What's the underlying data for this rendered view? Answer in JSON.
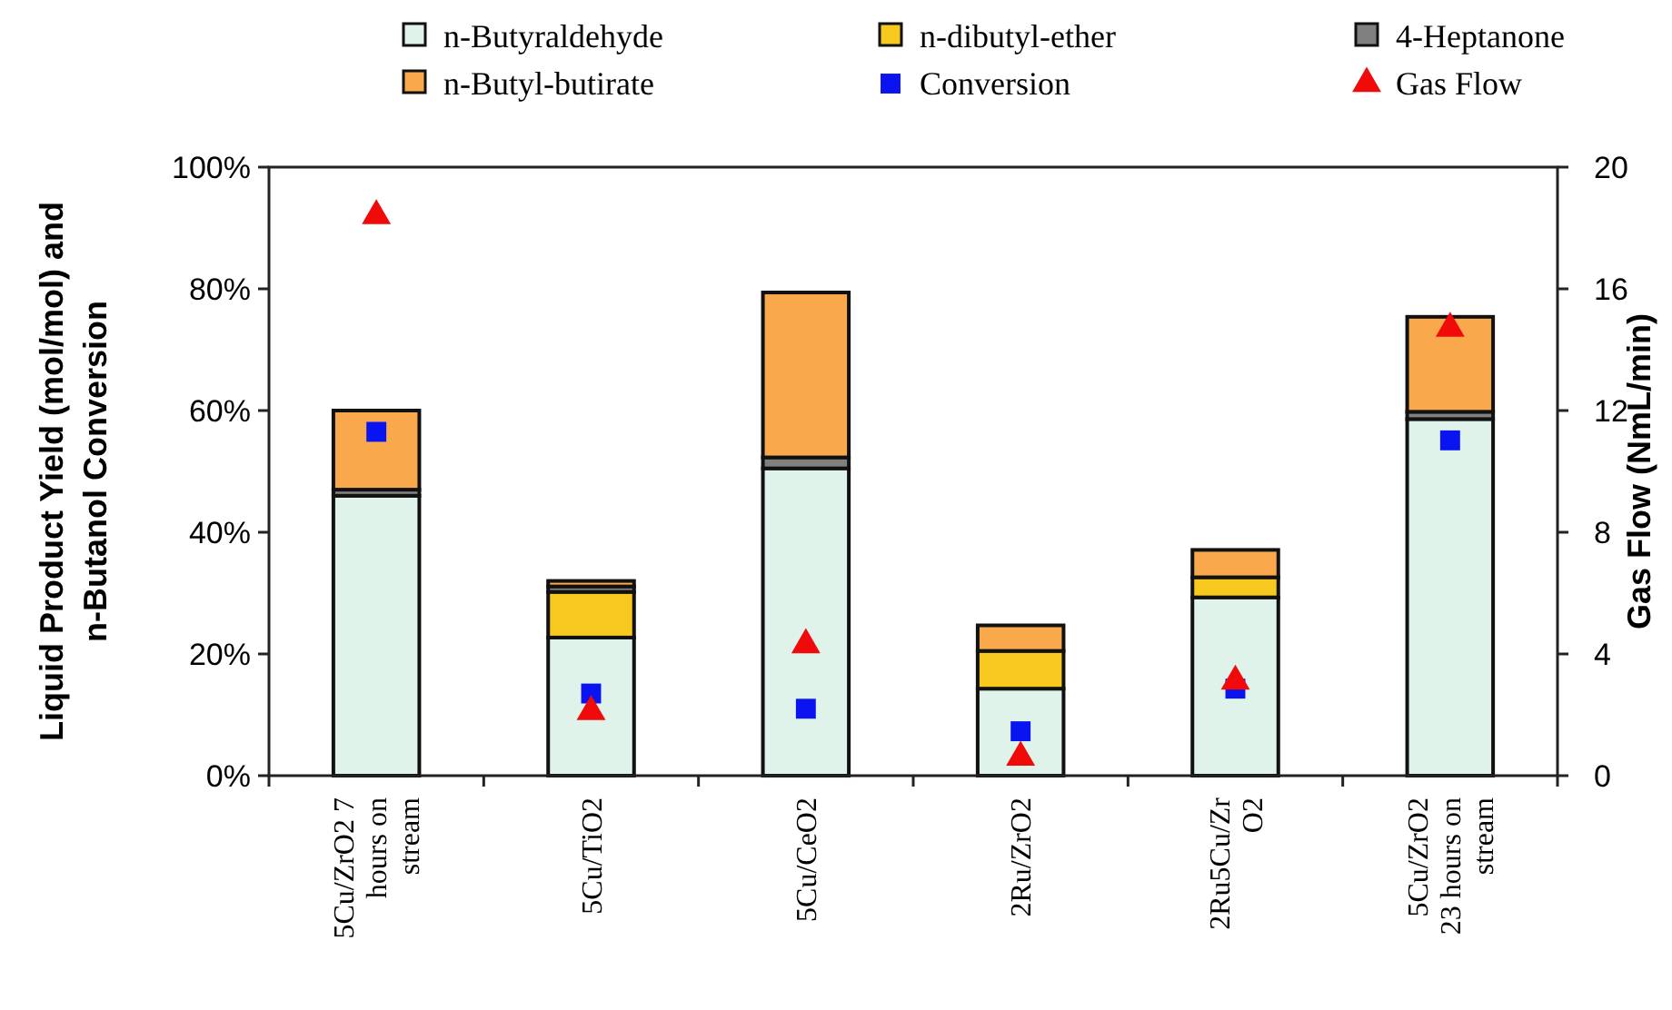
{
  "chart_data": {
    "type": "bar",
    "stacked": true,
    "ylabel": "Liquid Product Yield (mol/mol) and\nn-Butanol Conversion",
    "y2label": "Gas Flow (NmL/min)",
    "categories": [
      "5Cu/ZrO2 7\nhours on\nstream",
      "5Cu/TiO2",
      "5Cu/CeO2",
      "2Ru/ZrO2",
      "2Ru5Cu/Zr\nO2",
      "5Cu/ZrO2\n23 hours on\nstream"
    ],
    "series": [
      {
        "name": "n-Butyraldehyde",
        "color": "#dff3ea",
        "values": [
          46,
          22.7,
          50.5,
          14.3,
          29.3,
          58.6
        ]
      },
      {
        "name": "n-dibutyl-ether",
        "color": "#f7c81e",
        "values": [
          0,
          7.5,
          0,
          6.2,
          3.3,
          0
        ]
      },
      {
        "name": "4-Heptanone",
        "color": "#808080",
        "values": [
          1,
          0.9,
          1.8,
          0,
          0,
          1.2
        ]
      },
      {
        "name": "n-Butyl-butirate",
        "color": "#f9a94b",
        "values": [
          13,
          0.9,
          27.1,
          4.2,
          4.5,
          15.6
        ]
      },
      {
        "name": "Conversion",
        "type": "scatter",
        "marker": "square",
        "color": "#0a14f0",
        "values": [
          56.5,
          13.5,
          11,
          7.3,
          14.3,
          55.1
        ]
      },
      {
        "name": "Gas Flow",
        "type": "scatter",
        "marker": "triangle",
        "axis": "y2",
        "color": "#f00a0a",
        "values": [
          18.4,
          2.1,
          4.3,
          0.6,
          3.1,
          14.7
        ]
      }
    ],
    "ylim": [
      0,
      100
    ],
    "yticks": [
      {
        "value": 0,
        "label": "0%"
      },
      {
        "value": 20,
        "label": "20%"
      },
      {
        "value": 40,
        "label": "40%"
      },
      {
        "value": 60,
        "label": "60%"
      },
      {
        "value": 80,
        "label": "80%"
      },
      {
        "value": 100,
        "label": "100%"
      }
    ],
    "y2lim": [
      0,
      20
    ],
    "y2ticks": [
      0,
      4,
      8,
      12,
      16,
      20
    ],
    "grid": false,
    "legend": "top"
  }
}
